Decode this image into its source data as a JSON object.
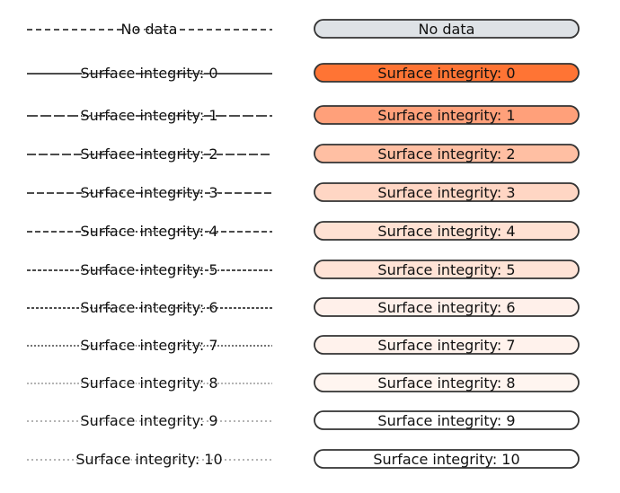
{
  "legend": {
    "items": [
      {
        "label": "No data",
        "fill": "#dee2e6",
        "line_color": "#111111",
        "dash": "6 4"
      },
      {
        "label": "Surface integrity: 0",
        "fill": "#ff7434",
        "line_color": "#111111",
        "dash": ""
      },
      {
        "label": "Surface integrity: 1",
        "fill": "#ffa07a",
        "line_color": "#111111",
        "dash": "12 3"
      },
      {
        "label": "Surface integrity: 2",
        "fill": "#ffbfa3",
        "line_color": "#111111",
        "dash": "10 3"
      },
      {
        "label": "Surface integrity: 3",
        "fill": "#ffd6c4",
        "line_color": "#111111",
        "dash": "8 3"
      },
      {
        "label": "Surface integrity: 4",
        "fill": "#ffe1d3",
        "line_color": "#111111",
        "dash": "6 3"
      },
      {
        "label": "Surface integrity: 5",
        "fill": "#ffe3d6",
        "line_color": "#111111",
        "dash": "4 2"
      },
      {
        "label": "Surface integrity: 6",
        "fill": "#fff0ea",
        "line_color": "#111111",
        "dash": "3 2"
      },
      {
        "label": "Surface integrity: 7",
        "fill": "#fff2ec",
        "line_color": "#222222",
        "dash": "2 2"
      },
      {
        "label": "Surface integrity: 8",
        "fill": "#fff5f0",
        "line_color": "#888888",
        "dash": "2 2"
      },
      {
        "label": "Surface integrity: 9",
        "fill": "#ffffff",
        "line_color": "#888888",
        "dash": "2 3"
      },
      {
        "label": "Surface integrity: 10",
        "fill": "#ffffff",
        "line_color": "#888888",
        "dash": "2 3"
      }
    ]
  }
}
